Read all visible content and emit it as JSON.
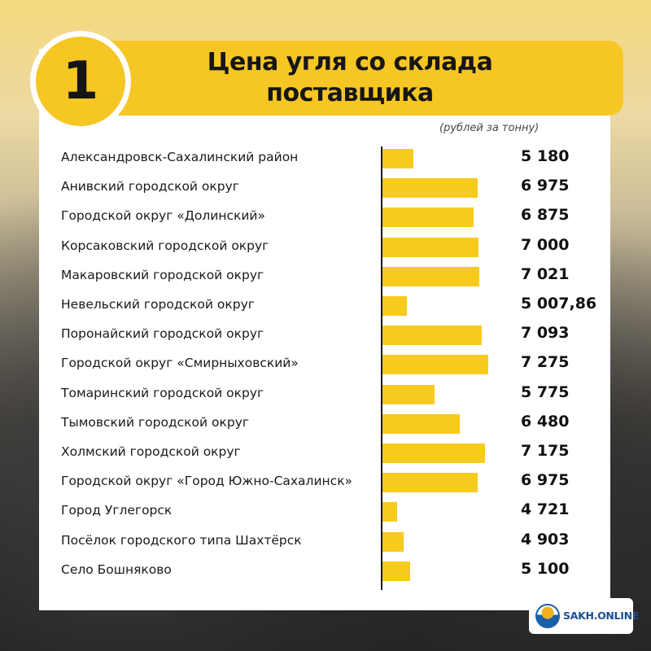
{
  "header": {
    "number": "1",
    "title_line1": "Цена угля со склада",
    "title_line2": "поставщика"
  },
  "chart_data": {
    "type": "bar",
    "orientation": "horizontal",
    "title": "Цена угля со склада поставщика",
    "units": "(рублей за тонну)",
    "categories": [
      "Александровск-Сахалинский район",
      "Анивский городской округ",
      "Городской округ «Долинский»",
      "Корсаковский городской округ",
      "Макаровский городской округ",
      "Невельский городской округ",
      "Поронайский городской округ",
      "Городской округ «Смирныховский»",
      "Томаринский городской округ",
      "Тымовский городской округ",
      "Холмский городской округ",
      "Городской округ «Город Южно-Сахалинск»",
      "Город Углегорск",
      "Посёлок городского типа Шахтёрск",
      "Село Бошняково"
    ],
    "values": [
      5180,
      6975,
      6875,
      7000,
      7021,
      5007.86,
      7093,
      7275,
      5775,
      6480,
      7175,
      6975,
      4721,
      4903,
      5100
    ],
    "value_labels": [
      "5 180",
      "6 975",
      "6 875",
      "7 000",
      "7 021",
      "5 007,86",
      "7 093",
      "7 275",
      "5 775",
      "6 480",
      "7 175",
      "6 975",
      "4 721",
      "4 903",
      "5 100"
    ],
    "bar_color": "#f7ca1e",
    "xlim": [
      4320,
      7500
    ],
    "grid": false,
    "legend": "none"
  },
  "logo": {
    "text": "SAKH.ONLINE",
    "colors": {
      "primary": "#1b5fa8",
      "accent": "#f2b01e"
    }
  },
  "colors": {
    "accent": "#f6c624",
    "text": "#1a1a1a"
  }
}
